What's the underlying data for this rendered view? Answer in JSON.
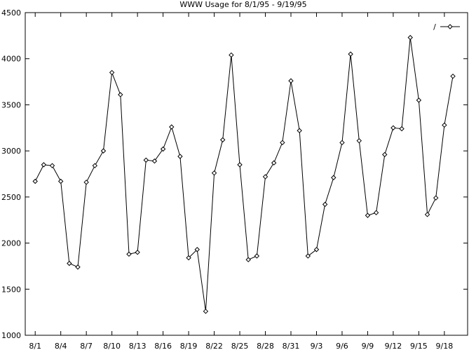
{
  "chart_data": {
    "type": "line",
    "title": "WWW Usage for 8/1/95 - 9/19/95",
    "xlabel": "",
    "ylabel": "",
    "ylim": [
      1000,
      4500
    ],
    "yticks": [
      1000,
      1500,
      2000,
      2500,
      3000,
      3500,
      4000,
      4500
    ],
    "xtick_labels": [
      "8/1",
      "8/4",
      "8/7",
      "8/10",
      "8/13",
      "8/16",
      "8/19",
      "8/22",
      "8/25",
      "8/28",
      "8/31",
      "9/3",
      "9/6",
      "9/9",
      "9/12",
      "9/15",
      "9/18"
    ],
    "grid": false,
    "legend": "top-right",
    "series": [
      {
        "name": "/",
        "color": "#000000",
        "marker": "diamond",
        "x": [
          "8/1",
          "8/2",
          "8/3",
          "8/4",
          "8/5",
          "8/6",
          "8/7",
          "8/8",
          "8/9",
          "8/10",
          "8/11",
          "8/12",
          "8/13",
          "8/14",
          "8/15",
          "8/16",
          "8/17",
          "8/18",
          "8/19",
          "8/20",
          "8/21",
          "8/22",
          "8/23",
          "8/24",
          "8/25",
          "8/26",
          "8/27",
          "8/28",
          "8/29",
          "8/30",
          "8/31",
          "9/1",
          "9/2",
          "9/3",
          "9/4",
          "9/5",
          "9/6",
          "9/7",
          "9/8",
          "9/9",
          "9/10",
          "9/11",
          "9/12",
          "9/13",
          "9/14",
          "9/15",
          "9/16",
          "9/17",
          "9/18",
          "9/19"
        ],
        "values": [
          2670,
          2850,
          2840,
          2670,
          1780,
          1740,
          2660,
          2840,
          3000,
          3850,
          3610,
          1880,
          1900,
          2900,
          2890,
          3020,
          3260,
          2940,
          1840,
          1930,
          1260,
          2760,
          3120,
          4040,
          2850,
          1820,
          1860,
          2720,
          2870,
          3090,
          3760,
          3220,
          1860,
          1930,
          2420,
          2710,
          3090,
          4050,
          3110,
          2300,
          2330,
          2960,
          3250,
          3240,
          4230,
          3550,
          2310,
          2490,
          3280,
          3810
        ]
      }
    ]
  }
}
